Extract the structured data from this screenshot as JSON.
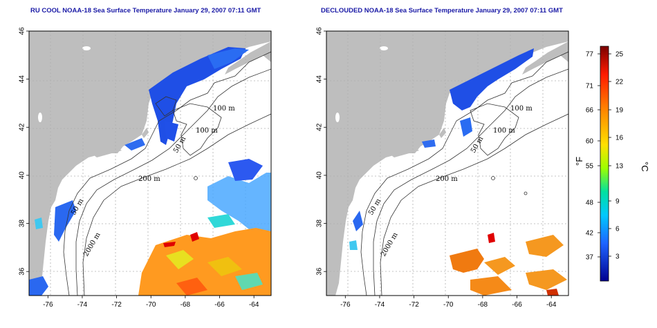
{
  "panels": [
    {
      "id": "left",
      "title": "RU COOL NOAA-18 Sea Surface Temperature January 29, 2007 07:11 GMT",
      "contour_labels": [
        "100 m",
        "100 m",
        "50 m",
        "200 m",
        "50 m",
        "2000 m"
      ]
    },
    {
      "id": "right",
      "title": "DECLOUDED NOAA-18 Sea Surface Temperature January 29, 2007 07:11 GMT",
      "contour_labels": [
        "100 m",
        "100 m",
        "50 m",
        "200 m",
        "50 m",
        "2000 m"
      ]
    }
  ],
  "axes": {
    "x_ticks": [
      "-76",
      "-74",
      "-72",
      "-70",
      "-68",
      "-66",
      "-64"
    ],
    "x_values": [
      -76,
      -74,
      -72,
      -70,
      -68,
      -66,
      -64
    ],
    "y_ticks": [
      "36",
      "38",
      "40",
      "42",
      "44",
      "46"
    ],
    "y_values": [
      36,
      38,
      40,
      42,
      44,
      46
    ],
    "lon_range": [
      -77.1,
      -63
    ],
    "lat_range": [
      35,
      46
    ]
  },
  "colorbar": {
    "fahrenheit_ticks": [
      "77",
      "71",
      "66",
      "60",
      "55",
      "48",
      "42",
      "37"
    ],
    "celsius_ticks": [
      "25",
      "22",
      "19",
      "16",
      "13",
      "9",
      "6",
      "3"
    ],
    "fahrenheit_unit": "°F",
    "celsius_unit": "°C",
    "colors": [
      "#ff0000",
      "#ff7f00",
      "#ffd700",
      "#7fff00",
      "#00d0d0",
      "#1e90ff",
      "#0000ff",
      "#00008b"
    ]
  },
  "legend_colors": {
    "land": "#bebebe",
    "ocean": "#ffffff",
    "contour": "#333333",
    "grid": "#b0b0b0",
    "title": "#1a1aa6"
  }
}
